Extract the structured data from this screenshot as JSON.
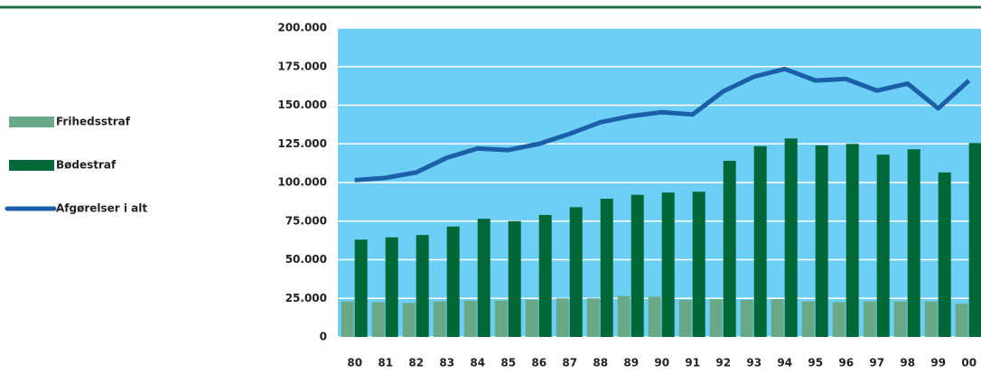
{
  "chart_data": {
    "type": "bar",
    "categories": [
      "80",
      "81",
      "82",
      "83",
      "84",
      "85",
      "86",
      "87",
      "88",
      "89",
      "90",
      "91",
      "92",
      "93",
      "94",
      "95",
      "96",
      "97",
      "98",
      "99",
      "00"
    ],
    "series": [
      {
        "name": "Frihedsstraf",
        "color": "#6aa987",
        "type": "bar",
        "values": [
          23000,
          22500,
          22000,
          23000,
          23500,
          23500,
          24000,
          25000,
          25000,
          26500,
          26000,
          24000,
          24500,
          24000,
          24500,
          23000,
          22500,
          23000,
          23000,
          23000,
          21500
        ]
      },
      {
        "name": "Bødestraf",
        "color": "#006837",
        "type": "bar",
        "values": [
          63000,
          64500,
          66000,
          71500,
          76500,
          75000,
          79000,
          84000,
          89500,
          92000,
          93500,
          94000,
          114000,
          123500,
          128500,
          124000,
          125000,
          118000,
          121500,
          106500,
          125500
        ]
      },
      {
        "name": "Afgørelser i alt",
        "color": "#1a5fa8",
        "type": "line",
        "values": [
          101500,
          103000,
          106500,
          116000,
          122000,
          121000,
          125000,
          131500,
          139000,
          143000,
          145500,
          144000,
          159000,
          168500,
          173500,
          166000,
          167000,
          159500,
          164000,
          148000,
          166000
        ]
      }
    ],
    "ylim": [
      0,
      200000
    ],
    "yticks": [
      0,
      {
        "value": 25000,
        "label": "25.000"
      },
      {
        "value": 50000,
        "label": "50.000"
      },
      {
        "value": 75000,
        "label": "75.000"
      },
      {
        "value": 100000,
        "label": "100.000"
      },
      {
        "value": 125000,
        "label": "125.000"
      },
      {
        "value": 150000,
        "label": "150.000"
      },
      {
        "value": 175000,
        "label": "175.000"
      },
      {
        "value": 200000,
        "label": "200.000"
      }
    ],
    "grid": true,
    "background": "#6dcff6",
    "legend": "left"
  }
}
